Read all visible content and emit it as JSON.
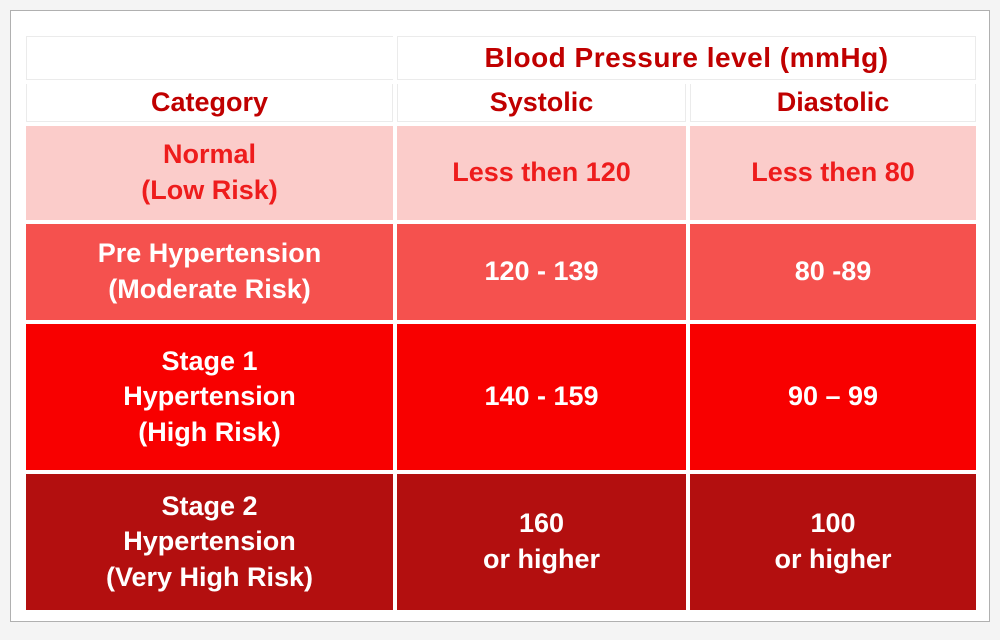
{
  "panel": {
    "background": "#ffffff",
    "border_color": "#b0b0b0",
    "page_background": "#f4f4f4"
  },
  "table": {
    "header": {
      "group_title": "Blood Pressure level (mmHg)",
      "columns": [
        "Category",
        "Systolic",
        "Diastolic"
      ],
      "text_color": "#C00000"
    },
    "rows": [
      {
        "category": [
          "Normal",
          "(Low Risk)"
        ],
        "systolic": "Less then 120",
        "diastolic": "Less then 80",
        "bg": "#FBCCCA",
        "fg": "#EE1C1C"
      },
      {
        "category": [
          "Pre Hypertension",
          "(Moderate Risk)"
        ],
        "systolic": "120 - 139",
        "diastolic": "80 -89",
        "bg": "#F5514E",
        "fg": "#FFFFFF"
      },
      {
        "category": [
          "Stage 1",
          "Hypertension",
          "(High Risk)"
        ],
        "systolic": "140 - 159",
        "diastolic": "90 – 99",
        "bg": "#F80000",
        "fg": "#FFFFFF"
      },
      {
        "category": [
          "Stage 2",
          "Hypertension",
          "(Very High Risk)"
        ],
        "systolic": [
          "160",
          "or higher"
        ],
        "diastolic": [
          "100",
          "or higher"
        ],
        "bg": "#B30F0F",
        "fg": "#FFFFFF"
      }
    ]
  },
  "chart_data": {
    "type": "table",
    "title": "Blood Pressure level (mmHg)",
    "columns": [
      "Category",
      "Systolic",
      "Diastolic"
    ],
    "rows": [
      [
        "Normal (Low Risk)",
        "Less then 120",
        "Less then 80"
      ],
      [
        "Pre Hypertension (Moderate Risk)",
        "120 - 139",
        "80 -89"
      ],
      [
        "Stage 1 Hypertension (High Risk)",
        "140 - 159",
        "90 – 99"
      ],
      [
        "Stage 2 Hypertension (Very High Risk)",
        "160 or higher",
        "100 or higher"
      ]
    ],
    "row_colors": [
      "#FBCCCA",
      "#F5514E",
      "#F80000",
      "#B30F0F"
    ],
    "header_text_color": "#C00000"
  }
}
